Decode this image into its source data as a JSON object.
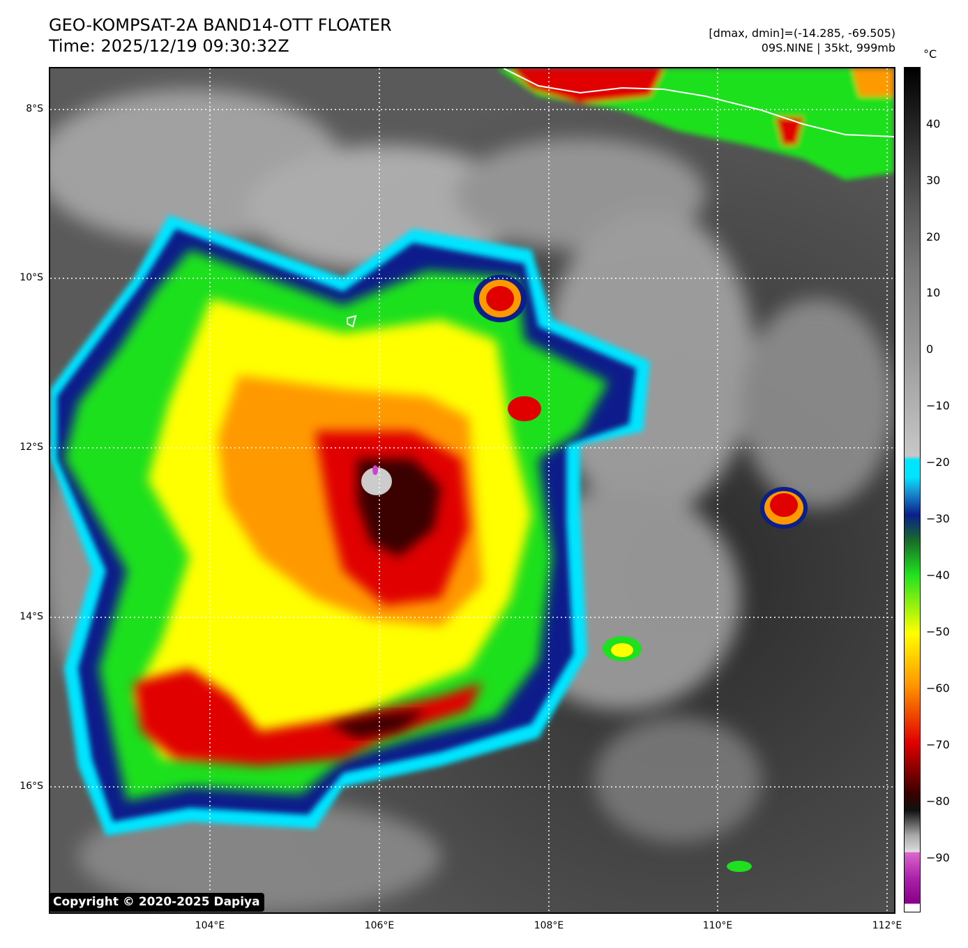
{
  "header": {
    "title_line1": "GEO-KOMPSAT-2A BAND14-OTT FLOATER",
    "title_line2": "Time: 2025/12/19 09:30:32Z",
    "info_line1": "[dmax, dmin]=(-14.285, -69.505)",
    "info_line2": "09S.NINE | 35kt, 999mb"
  },
  "map": {
    "lat_labels": [
      "8°S",
      "10°S",
      "12°S",
      "14°S",
      "16°S"
    ],
    "lon_labels": [
      "104°E",
      "106°E",
      "108°E",
      "110°E",
      "112°E"
    ],
    "copyright": "Copyright © 2020-2025 Dapiya"
  },
  "colorbar": {
    "unit": "°C",
    "ticks": [
      "40",
      "30",
      "20",
      "10",
      "0",
      "−10",
      "−20",
      "−30",
      "−40",
      "−50",
      "−60",
      "−70",
      "−80",
      "−90"
    ],
    "colors": {
      "warm_black": "#000000",
      "gray": "#9a9a9a",
      "cyan": "#00e5ff",
      "blue": "#0a1f8a",
      "green": "#1fe01f",
      "yellow": "#ffff00",
      "orange": "#ff9900",
      "red": "#e00000",
      "dark_red": "#3a0000",
      "magenta": "#cc44cc",
      "white": "#ffffff"
    }
  }
}
